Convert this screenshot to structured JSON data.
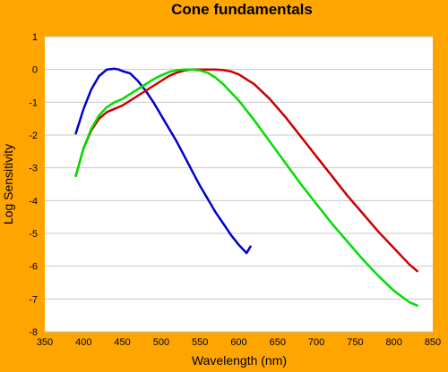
{
  "chart_data": {
    "type": "line",
    "title": "Cone fundamentals",
    "xlabel": "Wavelength (nm)",
    "ylabel": "Log Sensitivity",
    "xlim": [
      350,
      850
    ],
    "ylim": [
      -8,
      1
    ],
    "xticks": [
      350,
      400,
      450,
      500,
      550,
      600,
      650,
      700,
      750,
      800,
      850
    ],
    "yticks": [
      1,
      0,
      -1,
      -2,
      -3,
      -4,
      -5,
      -6,
      -7,
      -8
    ],
    "grid": "horizontal",
    "plot_background": "#ffffff",
    "page_background": "#ffa500",
    "series": [
      {
        "color": "#0000cc",
        "x": [
          390,
          400,
          410,
          420,
          430,
          440,
          445,
          450,
          460,
          470,
          480,
          490,
          500,
          510,
          520,
          530,
          540,
          550,
          560,
          570,
          580,
          590,
          600,
          610,
          615
        ],
        "y": [
          -1.95,
          -1.2,
          -0.6,
          -0.2,
          0,
          0.02,
          0,
          -0.05,
          -0.12,
          -0.35,
          -0.65,
          -1.0,
          -1.4,
          -1.8,
          -2.2,
          -2.65,
          -3.1,
          -3.55,
          -3.95,
          -4.35,
          -4.7,
          -5.05,
          -5.35,
          -5.6,
          -5.4
        ]
      },
      {
        "color": "#cc0000",
        "x": [
          390,
          400,
          410,
          420,
          430,
          440,
          450,
          460,
          470,
          480,
          490,
          500,
          510,
          520,
          530,
          540,
          550,
          560,
          570,
          580,
          590,
          600,
          620,
          640,
          660,
          680,
          700,
          720,
          740,
          760,
          780,
          800,
          820,
          830
        ],
        "y": [
          -3.25,
          -2.4,
          -1.85,
          -1.5,
          -1.3,
          -1.2,
          -1.1,
          -0.95,
          -0.8,
          -0.65,
          -0.5,
          -0.35,
          -0.2,
          -0.1,
          -0.03,
          0,
          0,
          0,
          0,
          -0.02,
          -0.06,
          -0.15,
          -0.45,
          -0.9,
          -1.45,
          -2.05,
          -2.65,
          -3.25,
          -3.85,
          -4.4,
          -4.95,
          -5.45,
          -5.95,
          -6.15
        ]
      },
      {
        "color": "#00dd00",
        "x": [
          390,
          400,
          410,
          420,
          430,
          440,
          450,
          460,
          470,
          480,
          490,
          500,
          510,
          520,
          530,
          540,
          550,
          560,
          570,
          580,
          590,
          600,
          620,
          640,
          660,
          680,
          700,
          720,
          740,
          760,
          780,
          800,
          820,
          830
        ],
        "y": [
          -3.25,
          -2.4,
          -1.8,
          -1.4,
          -1.15,
          -1.0,
          -0.9,
          -0.75,
          -0.6,
          -0.45,
          -0.3,
          -0.18,
          -0.08,
          -0.02,
          0,
          0,
          -0.03,
          -0.1,
          -0.25,
          -0.45,
          -0.7,
          -0.95,
          -1.55,
          -2.2,
          -2.85,
          -3.5,
          -4.1,
          -4.7,
          -5.25,
          -5.8,
          -6.3,
          -6.75,
          -7.1,
          -7.2
        ]
      }
    ]
  }
}
